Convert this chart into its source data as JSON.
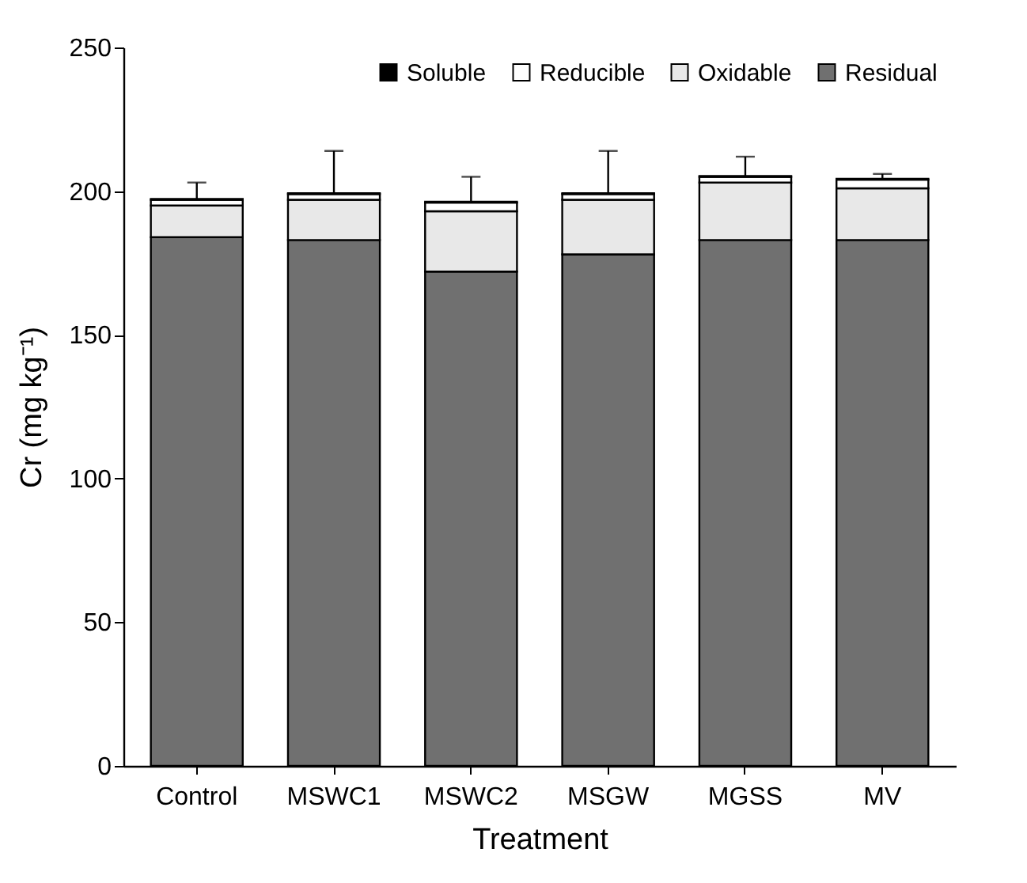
{
  "chart_data": {
    "type": "bar",
    "stacked": true,
    "xlabel": "Treatment",
    "ylabel": "Cr (mg kg⁻¹)",
    "categories": [
      "Control",
      "MSWC1",
      "MSWC2",
      "MSGW",
      "MGSS",
      "MV"
    ],
    "series": [
      {
        "name": "Residual",
        "color": "#707070",
        "values": [
          184,
          183,
          172,
          178,
          183,
          183
        ]
      },
      {
        "name": "Oxidable",
        "color": "#e8e8e8",
        "values": [
          11,
          14,
          21,
          19,
          20,
          18
        ]
      },
      {
        "name": "Reducible",
        "color": "#ffffff",
        "values": [
          2,
          2,
          3,
          2,
          2,
          3
        ]
      },
      {
        "name": "Soluble",
        "color": "#000000",
        "values": [
          0.3,
          0.3,
          0.3,
          0.3,
          0.3,
          0.3
        ],
        "errors": [
          [
            197.3,
            203
          ],
          [
            199.3,
            214
          ],
          [
            196.3,
            205
          ],
          [
            199.3,
            214
          ],
          [
            205.3,
            212
          ],
          [
            204.3,
            206
          ]
        ]
      }
    ],
    "ylim": [
      0,
      250
    ],
    "yticks": [
      0,
      50,
      100,
      150,
      200,
      250
    ],
    "grid": false,
    "legend": "top"
  }
}
